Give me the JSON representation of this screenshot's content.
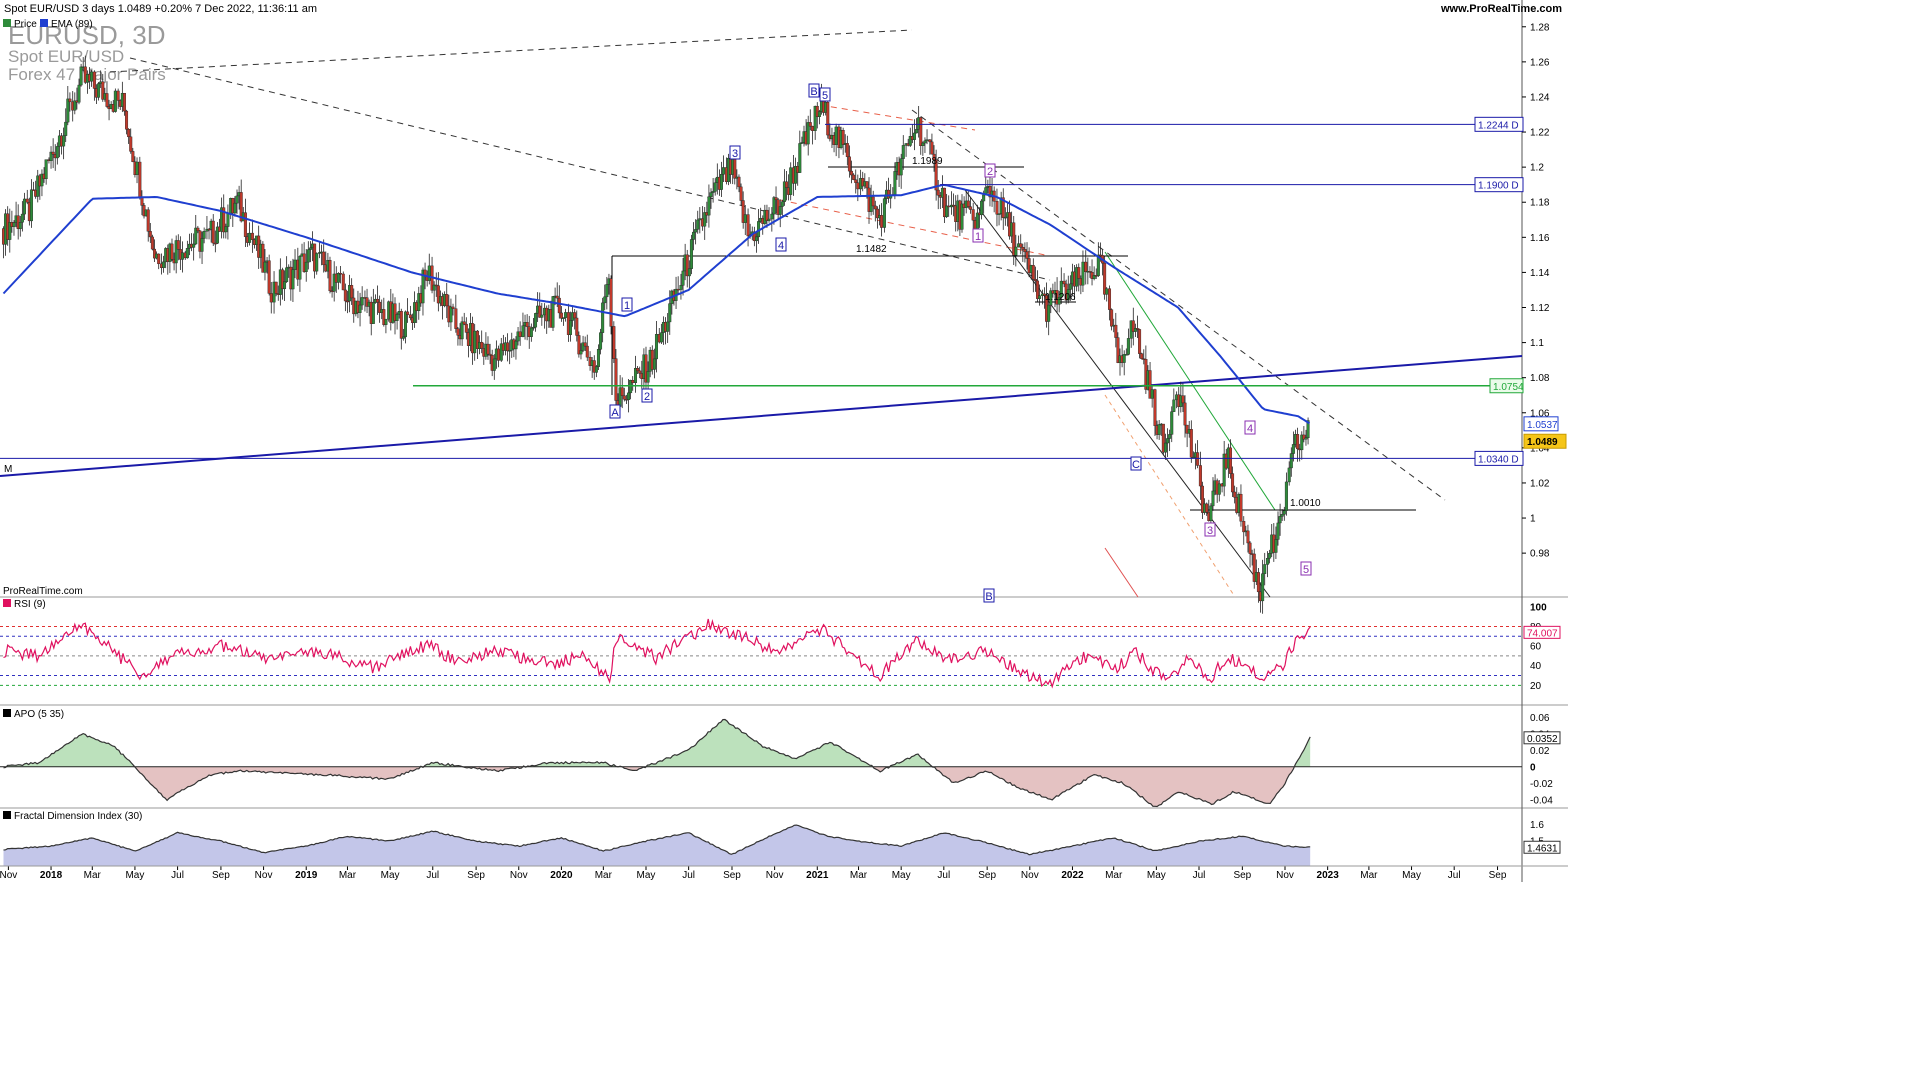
{
  "header": {
    "title": "Spot EUR/USD 3 days 1.0489 +0.20% 7 Dec 2022, 11:36:11 am",
    "brand_link": "www.ProRealTime.com"
  },
  "watermark": {
    "symbol": "EURUSD, 3D",
    "name": "Spot EUR/USD",
    "group": "Forex 47 Major Pairs"
  },
  "credit": "ProRealTime.com",
  "colors": {
    "price_up": "#2e8b3a",
    "price_down": "#c0392b",
    "ema": "#1f3fd0",
    "rsi": "#e0115f",
    "apo_pos": "#9fd49f",
    "apo_neg": "#d8a8a8",
    "fdi": "#a9aee0",
    "hline": "#1a1aa8",
    "green_line": "#22a83a"
  },
  "chart_data": [
    {
      "type": "line",
      "title": "EURUSD, 3D",
      "legend": [
        "Price",
        "EMA (89)"
      ],
      "x_ticks": [
        "Nov",
        "2018",
        "Mar",
        "May",
        "Jul",
        "Sep",
        "Nov",
        "2019",
        "Mar",
        "May",
        "Jul",
        "Sep",
        "Nov",
        "2020",
        "Mar",
        "May",
        "Jul",
        "Sep",
        "Nov",
        "2021",
        "Mar",
        "May",
        "Jul",
        "Sep",
        "Nov",
        "2022",
        "Mar",
        "May",
        "Jul",
        "Sep",
        "Nov",
        "2023",
        "Mar",
        "May",
        "Jul",
        "Sep"
      ],
      "y_ticks": [
        "1.28",
        "1.26",
        "1.24",
        "1.22",
        "1.2",
        "1.18",
        "1.16",
        "1.14",
        "1.12",
        "1.1",
        "1.08",
        "1.06",
        "1.04",
        "1.02",
        "1",
        "0.98"
      ],
      "ylim": [
        0.955,
        1.285
      ],
      "series": [
        {
          "name": "Price",
          "x": [
            "2017-10-25",
            "2017-12-01",
            "2018-02-15",
            "2018-04-15",
            "2018-05-30",
            "2018-08-15",
            "2018-09-25",
            "2018-11-15",
            "2019-01-10",
            "2019-03-05",
            "2019-05-25",
            "2019-06-25",
            "2019-08-01",
            "2019-09-30",
            "2019-11-15",
            "2020-01-01",
            "2020-02-20",
            "2020-03-09",
            "2020-03-20",
            "2020-05-10",
            "2020-07-31",
            "2020-09-01",
            "2020-09-25",
            "2020-11-10",
            "2021-01-06",
            "2021-03-31",
            "2021-05-25",
            "2021-07-07",
            "2021-08-20",
            "2021-09-03",
            "2021-11-24",
            "2022-02-10",
            "2022-03-07",
            "2022-03-31",
            "2022-05-13",
            "2022-05-30",
            "2022-07-14",
            "2022-08-10",
            "2022-09-28",
            "2022-10-03",
            "2022-10-21",
            "2022-11-15",
            "2022-12-07"
          ],
          "values": [
            1.165,
            1.175,
            1.25,
            1.235,
            1.15,
            1.16,
            1.18,
            1.13,
            1.15,
            1.125,
            1.11,
            1.14,
            1.11,
            1.09,
            1.11,
            1.12,
            1.085,
            1.145,
            1.065,
            1.09,
            1.18,
            1.2,
            1.16,
            1.18,
            1.235,
            1.17,
            1.226,
            1.175,
            1.17,
            1.19,
            1.12,
            1.145,
            1.09,
            1.11,
            1.037,
            1.078,
            0.998,
            1.035,
            0.955,
            0.98,
            0.985,
            1.04,
            1.0489
          ]
        },
        {
          "name": "EMA (89)",
          "x": [
            "2017-10-25",
            "2018-03-01",
            "2018-06-01",
            "2018-09-01",
            "2019-01-01",
            "2019-06-01",
            "2019-10-01",
            "2020-01-01",
            "2020-04-01",
            "2020-07-01",
            "2020-10-01",
            "2021-01-01",
            "2021-05-01",
            "2021-07-01",
            "2021-09-15",
            "2021-12-01",
            "2022-03-01",
            "2022-06-01",
            "2022-08-01",
            "2022-10-01",
            "2022-11-20",
            "2022-12-07"
          ],
          "values": [
            1.128,
            1.182,
            1.183,
            1.175,
            1.16,
            1.14,
            1.128,
            1.122,
            1.115,
            1.13,
            1.162,
            1.183,
            1.184,
            1.19,
            1.183,
            1.167,
            1.143,
            1.12,
            1.092,
            1.062,
            1.058,
            1.0537
          ]
        }
      ],
      "price_labels": [
        "1.2244 D",
        "1.1900 D",
        "1.0754",
        "1.0537",
        "1.0489",
        "1.0340 D"
      ],
      "horizontal_levels": [
        1.2244,
        1.19,
        1.0754,
        1.034
      ],
      "level_annotations": [
        "1.1989",
        "1.1482",
        "1.1206",
        "1.0010"
      ],
      "wave_labels": [
        "B",
        "5",
        "3",
        "4",
        "1",
        "2",
        "A",
        "2",
        "1",
        "C",
        "3",
        "4",
        "5",
        "B"
      ],
      "other_labels": [
        "M"
      ]
    },
    {
      "type": "line",
      "title": "RSI (9)",
      "y_ticks": [
        "100",
        "80",
        "60",
        "40",
        "20"
      ],
      "ylim": [
        0,
        100
      ],
      "last_value_label": "74.007",
      "levels": [
        80,
        70,
        50,
        30,
        20
      ],
      "series": [
        {
          "name": "RSI (9)",
          "x": [
            "2017-10-25",
            "2017-12-15",
            "2018-02-01",
            "2018-02-20",
            "2018-05-10",
            "2018-06-15",
            "2018-09-01",
            "2018-11-15",
            "2019-01-15",
            "2019-04-10",
            "2019-06-25",
            "2019-08-01",
            "2019-10-01",
            "2019-12-20",
            "2020-01-30",
            "2020-03-09",
            "2020-03-20",
            "2020-05-15",
            "2020-07-31",
            "2020-09-15",
            "2020-11-01",
            "2021-01-06",
            "2021-03-31",
            "2021-05-25",
            "2021-07-07",
            "2021-09-01",
            "2021-11-24",
            "2022-01-15",
            "2022-03-07",
            "2022-04-01",
            "2022-05-13",
            "2022-06-20",
            "2022-07-14",
            "2022-08-10",
            "2022-09-28",
            "2022-10-31",
            "2022-11-20",
            "2022-12-07"
          ],
          "values": [
            55,
            50,
            76,
            80,
            30,
            48,
            60,
            45,
            55,
            38,
            62,
            45,
            55,
            42,
            50,
            26,
            68,
            48,
            82,
            70,
            55,
            78,
            30,
            66,
            45,
            55,
            20,
            48,
            38,
            55,
            24,
            50,
            24,
            50,
            30,
            42,
            72,
            74.007
          ]
        }
      ]
    },
    {
      "type": "area",
      "title": "APO (5 35)",
      "y_ticks": [
        "0.06",
        "0.04",
        "0.02",
        "0",
        "-0.02",
        "-0.04"
      ],
      "ylim": [
        -0.05,
        0.075
      ],
      "last_value_label": "0.0352",
      "series": [
        {
          "name": "APO (5 35)",
          "x": [
            "2017-10-25",
            "2017-12-15",
            "2018-02-15",
            "2018-04-01",
            "2018-05-01",
            "2018-06-15",
            "2018-08-15",
            "2018-10-01",
            "2018-12-01",
            "2019-02-01",
            "2019-05-01",
            "2019-07-01",
            "2019-10-01",
            "2019-12-15",
            "2020-03-01",
            "2020-04-15",
            "2020-07-01",
            "2020-08-20",
            "2020-10-15",
            "2020-12-01",
            "2021-01-20",
            "2021-04-01",
            "2021-05-25",
            "2021-07-15",
            "2021-09-01",
            "2021-10-15",
            "2021-12-01",
            "2022-02-01",
            "2022-03-15",
            "2022-05-01",
            "2022-06-01",
            "2022-07-20",
            "2022-08-20",
            "2022-10-10",
            "2022-11-01",
            "2022-12-07"
          ],
          "values": [
            0.0,
            0.005,
            0.04,
            0.025,
            0.0,
            -0.04,
            -0.01,
            -0.005,
            -0.008,
            -0.01,
            -0.015,
            0.005,
            -0.005,
            0.005,
            0.005,
            -0.005,
            0.02,
            0.058,
            0.025,
            0.01,
            0.03,
            -0.005,
            0.015,
            -0.02,
            -0.005,
            -0.025,
            -0.04,
            -0.01,
            -0.02,
            -0.05,
            -0.03,
            -0.045,
            -0.03,
            -0.045,
            -0.02,
            0.0352
          ]
        }
      ]
    },
    {
      "type": "area",
      "title": "Fractal Dimension Index (30)",
      "y_ticks": [
        "1.6",
        "1.5"
      ],
      "ylim": [
        1.35,
        1.7
      ],
      "last_value_label": "1.4631",
      "series": [
        {
          "name": "Fractal Dimension Index (30)",
          "x": [
            "2017-10-25",
            "2018-01-01",
            "2018-03-01",
            "2018-05-01",
            "2018-07-01",
            "2018-09-01",
            "2018-11-01",
            "2019-01-01",
            "2019-03-01",
            "2019-05-01",
            "2019-07-01",
            "2019-09-01",
            "2019-11-01",
            "2020-01-01",
            "2020-03-01",
            "2020-05-01",
            "2020-07-01",
            "2020-09-01",
            "2020-10-20",
            "2020-12-01",
            "2021-01-15",
            "2021-03-01",
            "2021-05-01",
            "2021-07-01",
            "2021-09-01",
            "2021-11-01",
            "2022-01-01",
            "2022-03-01",
            "2022-05-01",
            "2022-07-01",
            "2022-09-01",
            "2022-11-01",
            "2022-12-07"
          ],
          "values": [
            1.45,
            1.47,
            1.52,
            1.44,
            1.55,
            1.5,
            1.43,
            1.47,
            1.53,
            1.5,
            1.56,
            1.5,
            1.47,
            1.52,
            1.44,
            1.5,
            1.55,
            1.42,
            1.52,
            1.6,
            1.53,
            1.5,
            1.47,
            1.55,
            1.49,
            1.42,
            1.47,
            1.52,
            1.44,
            1.5,
            1.53,
            1.47,
            1.4631
          ]
        }
      ]
    }
  ]
}
